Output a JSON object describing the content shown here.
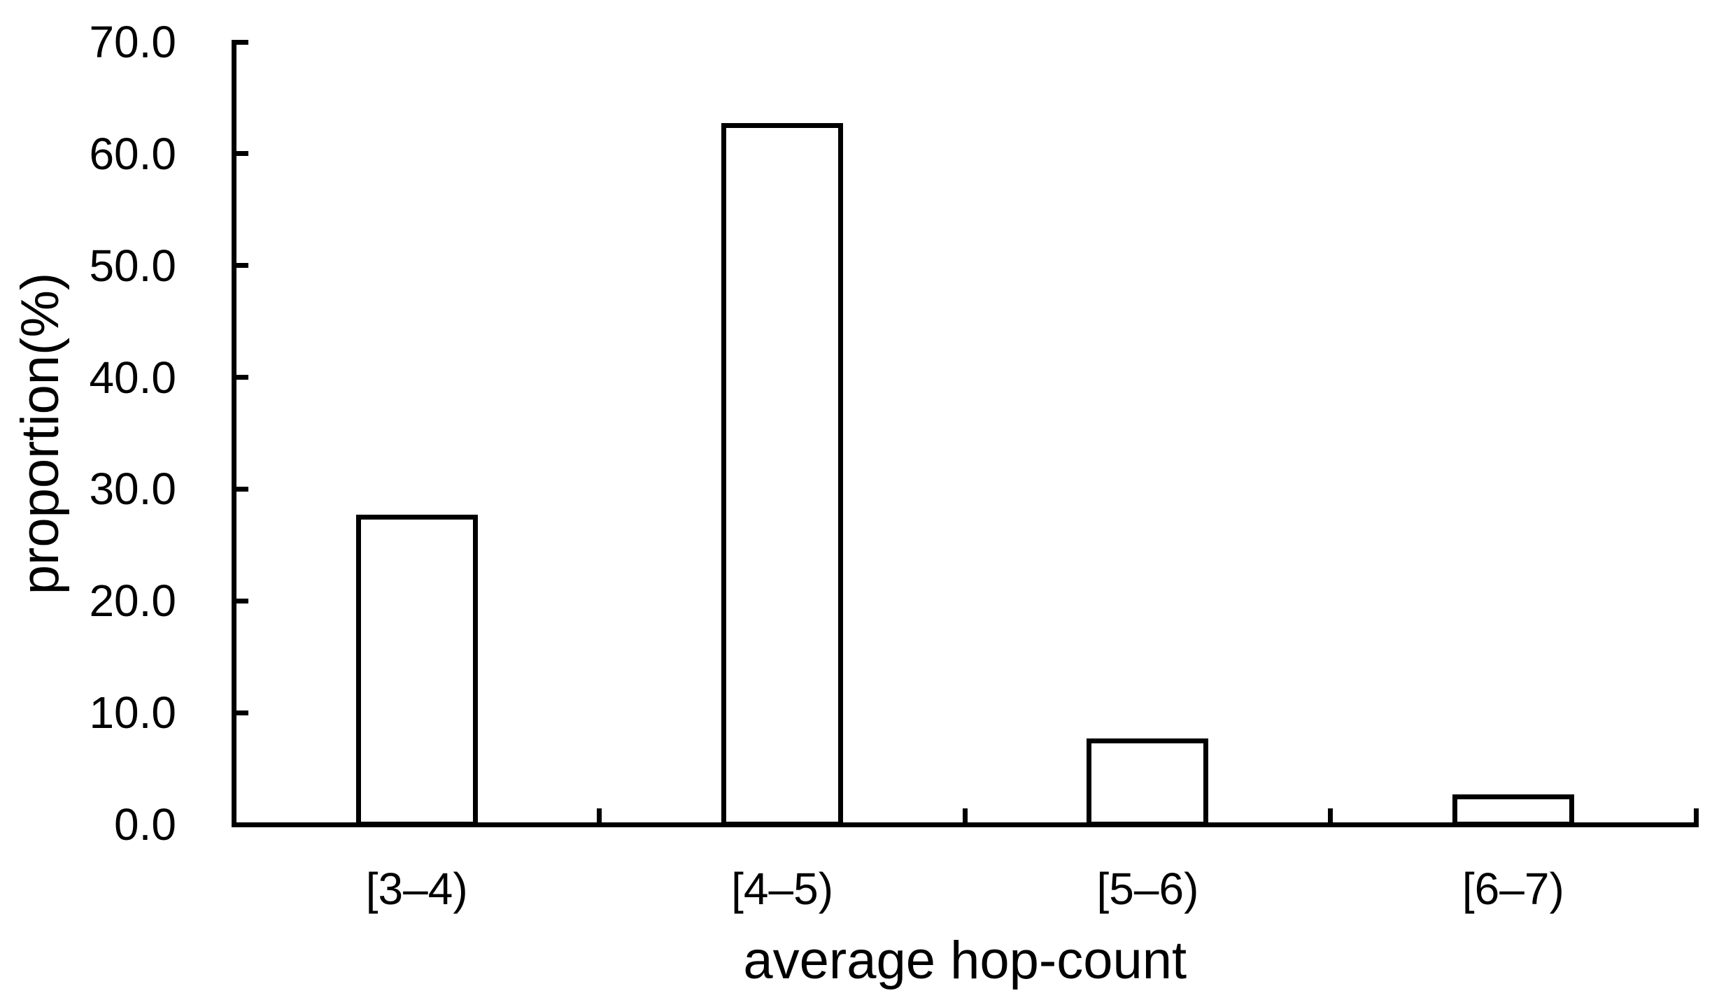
{
  "chart_data": {
    "type": "bar",
    "title": "",
    "xlabel": "average hop-count",
    "ylabel": "proportion(%)",
    "categories": [
      "[3–4)",
      "[4–5)",
      "[5–6)",
      "[6–7)"
    ],
    "values": [
      27.5,
      62.5,
      7.5,
      2.5
    ],
    "ylim": [
      0,
      70
    ],
    "ytick_step": 10,
    "ytick_labels": [
      "0.0",
      "10.0",
      "20.0",
      "30.0",
      "40.0",
      "50.0",
      "60.0",
      "70.0"
    ],
    "grid": false,
    "legend": "none",
    "layout_hints": {
      "bar_style": "outlined, white fill, black stroke",
      "tick_direction": "inside",
      "x_ticks_at_category_boundaries": true
    },
    "colors": {
      "background": "#ffffff",
      "bar_fill": "#ffffff",
      "bar_stroke": "#000000",
      "axis": "#000000",
      "text": "#000000"
    }
  }
}
